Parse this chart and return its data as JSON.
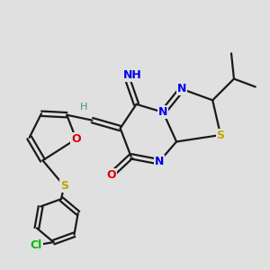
{
  "bg_color": "#e0e0e0",
  "bond_color": "#1a1a1a",
  "bond_width": 1.6,
  "atom_colors": {
    "N": "#0000ee",
    "O": "#dd0000",
    "S": "#bbaa00",
    "Cl": "#00bb00",
    "H": "#4a9090",
    "C": "#1a1a1a"
  },
  "fig_width": 3.0,
  "fig_height": 3.0,
  "dpi": 100
}
